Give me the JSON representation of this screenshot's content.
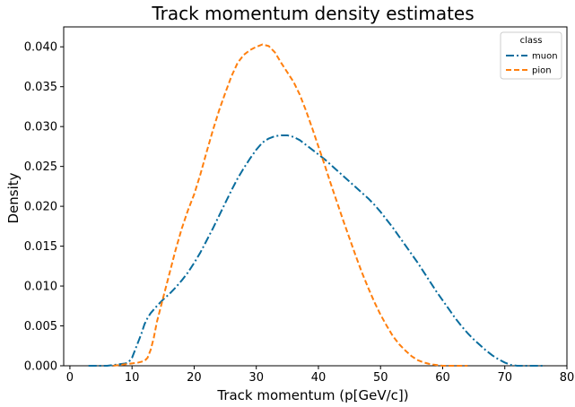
{
  "chart_data": {
    "type": "line",
    "title": "Track momentum density estimates",
    "xlabel": "Track momentum (p[GeV/c])",
    "ylabel": "Density",
    "xlim": [
      -1,
      80
    ],
    "ylim": [
      0,
      0.0425
    ],
    "xticks": [
      0,
      10,
      20,
      30,
      40,
      50,
      60,
      70,
      80
    ],
    "xtick_labels": [
      "0",
      "10",
      "20",
      "30",
      "40",
      "50",
      "60",
      "70",
      "80"
    ],
    "yticks": [
      0.0,
      0.005,
      0.01,
      0.015,
      0.02,
      0.025,
      0.03,
      0.035,
      0.04
    ],
    "ytick_labels": [
      "0.000",
      "0.005",
      "0.010",
      "0.015",
      "0.020",
      "0.025",
      "0.030",
      "0.035",
      "0.040"
    ],
    "grid": false,
    "legend": {
      "title": "class",
      "placement": "top-right"
    },
    "series": [
      {
        "name": "muon",
        "color": "#0a6d9e",
        "dash": "dashdot",
        "x": [
          3,
          6,
          8,
          9,
          9.5,
          10,
          10.5,
          11,
          11.5,
          12,
          12.5,
          13,
          14,
          15,
          16,
          17,
          18,
          19,
          20,
          21,
          22,
          23,
          24,
          25,
          26,
          27,
          28,
          29,
          30,
          31,
          32,
          33,
          34,
          35,
          36,
          37,
          38,
          39,
          40,
          41,
          42,
          43,
          44,
          45,
          46,
          47,
          48,
          49,
          50,
          51,
          52,
          53,
          54,
          55,
          56,
          57,
          58,
          59,
          60,
          61,
          62,
          63,
          64,
          65,
          66,
          67,
          68,
          69,
          70,
          71,
          72,
          73,
          74,
          75,
          76.5
        ],
        "y": [
          0.0,
          0.0,
          0.0002,
          0.0003,
          0.0005,
          0.001,
          0.002,
          0.003,
          0.004,
          0.0052,
          0.006,
          0.0066,
          0.0075,
          0.0083,
          0.009,
          0.0098,
          0.0107,
          0.0117,
          0.0129,
          0.0142,
          0.0157,
          0.0172,
          0.0188,
          0.0204,
          0.022,
          0.0235,
          0.0248,
          0.026,
          0.0271,
          0.028,
          0.0285,
          0.0288,
          0.0289,
          0.0289,
          0.0287,
          0.0283,
          0.0277,
          0.0271,
          0.0265,
          0.0259,
          0.0252,
          0.0245,
          0.0238,
          0.0231,
          0.0224,
          0.0217,
          0.021,
          0.0202,
          0.0193,
          0.0183,
          0.0173,
          0.0162,
          0.0151,
          0.014,
          0.0129,
          0.0117,
          0.0105,
          0.0093,
          0.0082,
          0.0071,
          0.006,
          0.005,
          0.0041,
          0.0033,
          0.0026,
          0.0019,
          0.0013,
          0.0008,
          0.0004,
          0.0001,
          0.0,
          0.0,
          0.0,
          0.0,
          0.0
        ]
      },
      {
        "name": "pion",
        "color": "#ff7f0e",
        "dash": "dashed",
        "x": [
          7,
          9,
          10,
          11,
          12,
          12.5,
          13,
          13.5,
          14,
          14.5,
          15,
          16,
          17,
          18,
          19,
          20,
          21,
          22,
          23,
          24,
          25,
          26,
          27,
          28,
          29,
          30,
          31,
          32,
          33,
          34,
          35,
          36,
          37,
          38,
          39,
          40,
          41,
          42,
          43,
          44,
          45,
          46,
          47,
          48,
          49,
          50,
          51,
          52,
          53,
          54,
          55,
          56,
          57,
          58,
          59,
          60,
          61,
          62,
          64
        ],
        "y": [
          0.0,
          0.0002,
          0.0003,
          0.0004,
          0.0006,
          0.001,
          0.002,
          0.0035,
          0.0055,
          0.007,
          0.0085,
          0.0115,
          0.0145,
          0.0172,
          0.0195,
          0.0215,
          0.024,
          0.0268,
          0.0295,
          0.032,
          0.0342,
          0.0363,
          0.038,
          0.039,
          0.0396,
          0.04,
          0.0403,
          0.0401,
          0.0393,
          0.038,
          0.0368,
          0.0356,
          0.034,
          0.032,
          0.0298,
          0.0275,
          0.0252,
          0.0228,
          0.0205,
          0.0182,
          0.016,
          0.0138,
          0.0117,
          0.0098,
          0.008,
          0.0064,
          0.005,
          0.0037,
          0.0027,
          0.0019,
          0.0012,
          0.0007,
          0.0004,
          0.0002,
          0.0001,
          0.0,
          0.0,
          0.0,
          0.0
        ]
      }
    ]
  }
}
